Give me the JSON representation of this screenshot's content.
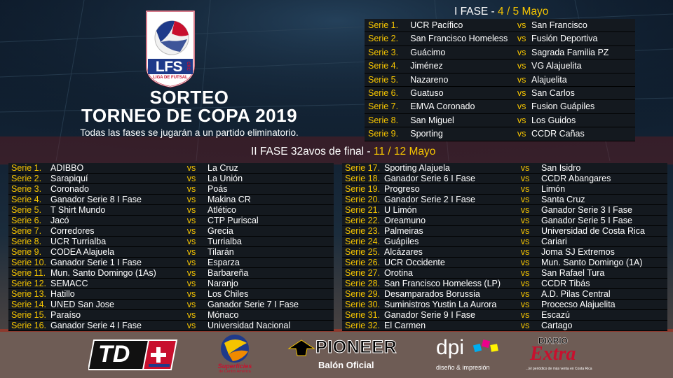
{
  "brand": {
    "logo_text": "LFS",
    "logo_sub": "LIGA DE FUTSAL",
    "logo_side": "CRC"
  },
  "header": {
    "title_line1": "SORTEO",
    "title_line2": "TORNEO DE COPA 2019",
    "subtitle": "Todas las fases se jugarán a un partido eliminatorio."
  },
  "phase1": {
    "label": "I FASE - ",
    "dates": "4 / 5 Mayo",
    "rows": [
      {
        "serie": "Serie 1.",
        "home": "UCR Pacífico",
        "vs": "vs",
        "away": "San Francisco"
      },
      {
        "serie": "Serie 2.",
        "home": "San Francisco Homeless",
        "vs": "vs",
        "away": "Fusión Deportiva"
      },
      {
        "serie": "Serie 3.",
        "home": "Guácimo",
        "vs": "vs",
        "away": "Sagrada Familia PZ"
      },
      {
        "serie": "Serie 4.",
        "home": "Jiménez",
        "vs": "vs",
        "away": "VG Alajuelita"
      },
      {
        "serie": "Serie 5.",
        "home": "Nazareno",
        "vs": "vs",
        "away": "Alajuelita"
      },
      {
        "serie": "Serie 6.",
        "home": "Guatuso",
        "vs": "vs",
        "away": "San Carlos"
      },
      {
        "serie": "Serie 7.",
        "home": "EMVA Coronado",
        "vs": "vs",
        "away": "Fusion Guápiles"
      },
      {
        "serie": "Serie 8.",
        "home": "San Miguel",
        "vs": "vs",
        "away": "Los Guidos"
      },
      {
        "serie": "Serie 9.",
        "home": "Sporting",
        "vs": "vs",
        "away": "CCDR Cañas"
      }
    ]
  },
  "phase2": {
    "label": "II FASE 32avos de final - ",
    "dates": "11 / 12 Mayo",
    "left": [
      {
        "serie": "Serie 1.",
        "home": "ADIBBO",
        "vs": "vs",
        "away": "La Cruz"
      },
      {
        "serie": "Serie 2.",
        "home": "Sarapiquí",
        "vs": "vs",
        "away": "La Unión"
      },
      {
        "serie": "Serie 3.",
        "home": "Coronado",
        "vs": "vs",
        "away": "Poás"
      },
      {
        "serie": "Serie 4.",
        "home": "Ganador Serie 8 I Fase",
        "vs": "vs",
        "away": "Makina CR"
      },
      {
        "serie": "Serie 5.",
        "home": "T Shirt Mundo",
        "vs": "vs",
        "away": "Atlético"
      },
      {
        "serie": "Serie 6.",
        "home": "Jacó",
        "vs": "vs",
        "away": "CTP Puriscal"
      },
      {
        "serie": "Serie 7.",
        "home": "Corredores",
        "vs": "vs",
        "away": "Grecia"
      },
      {
        "serie": "Serie 8.",
        "home": "UCR Turrialba",
        "vs": "vs",
        "away": "Turrialba"
      },
      {
        "serie": "Serie 9.",
        "home": "CODEA Alajuela",
        "vs": "vs",
        "away": "Tilarán"
      },
      {
        "serie": "Serie 10.",
        "home": "Ganador Serie 1 I Fase",
        "vs": "vs",
        "away": "Esparza"
      },
      {
        "serie": "Serie 11.",
        "home": "Mun. Santo Domingo (1As)",
        "vs": "vs",
        "away": "Barbareña"
      },
      {
        "serie": "Serie 12.",
        "home": "SEMACC",
        "vs": "vs",
        "away": "Naranjo"
      },
      {
        "serie": "Serie 13.",
        "home": "Hatillo",
        "vs": "vs",
        "away": "Los Chiles"
      },
      {
        "serie": "Serie 14.",
        "home": "UNED San Jose",
        "vs": "vs",
        "away": "Ganador Serie 7 I Fase"
      },
      {
        "serie": "Serie 15.",
        "home": "Paraíso",
        "vs": "vs",
        "away": "Mónaco"
      },
      {
        "serie": "Serie 16.",
        "home": "Ganador Serie 4 I Fase",
        "vs": "vs",
        "away": "Universidad Nacional"
      }
    ],
    "right": [
      {
        "serie": "Serie 17.",
        "home": "Sporting Alajuela",
        "vs": "vs",
        "away": "San Isidro"
      },
      {
        "serie": "Serie 18.",
        "home": "Ganador Serie 6 I Fase",
        "vs": "vs",
        "away": "CCDR Abangares"
      },
      {
        "serie": "Serie 19.",
        "home": "Progreso",
        "vs": "vs",
        "away": "Limón"
      },
      {
        "serie": "Serie 20.",
        "home": "Ganador Serie 2 I Fase",
        "vs": "vs",
        "away": "Santa Cruz"
      },
      {
        "serie": "Serie 21.",
        "home": "U Limón",
        "vs": "vs",
        "away": "Ganador Serie 3 I Fase"
      },
      {
        "serie": "Serie 22.",
        "home": "Oreamuno",
        "vs": "vs",
        "away": "Ganador Serie 5 I Fase"
      },
      {
        "serie": "Serie 23.",
        "home": "Palmeiras",
        "vs": "vs",
        "away": "Universidad de Costa Rica"
      },
      {
        "serie": "Serie 24.",
        "home": "Guápiles",
        "vs": "vs",
        "away": "Cariari"
      },
      {
        "serie": "Serie 25.",
        "home": "Alcázares",
        "vs": "vs",
        "away": "Joma SJ Extremos"
      },
      {
        "serie": "Serie 26.",
        "home": "UCR Occidente",
        "vs": "vs",
        "away": "Mun. Santo Domingo (1A)"
      },
      {
        "serie": "Serie 27.",
        "home": "Orotina",
        "vs": "vs",
        "away": "San Rafael Tura"
      },
      {
        "serie": "Serie 28.",
        "home": "San Francisco Homeless (LP)",
        "vs": "vs",
        "away": "CCDR Tibás"
      },
      {
        "serie": "Serie 29.",
        "home": "Desamparados Borussia",
        "vs": "vs",
        "away": "A.D. Pilas Central"
      },
      {
        "serie": "Serie 30.",
        "home": "Suministros Yustin La Aurora",
        "vs": "vs",
        "away": "Procecso Alajuelita"
      },
      {
        "serie": "Serie 31.",
        "home": "Ganador Serie 9 I Fase",
        "vs": "vs",
        "away": "Escazú"
      },
      {
        "serie": "Serie 32.",
        "home": "El Carmen",
        "vs": "vs",
        "away": "Cartago"
      }
    ]
  },
  "sponsors": {
    "td": "TD",
    "superficies": "Superficies",
    "superficies_sub": "de Centro América",
    "pioneer": "PIONEER",
    "pioneer_sub": "Balón Oficial",
    "dpi": "dpi",
    "dpi_sub": "diseño & impresión",
    "diario": "DIARIO",
    "extra": "Extra",
    "extra_sub": "...El periódico de más venta en Costa Rica"
  },
  "colors": {
    "accent": "#f5c400",
    "row_bg": "#14191f"
  }
}
